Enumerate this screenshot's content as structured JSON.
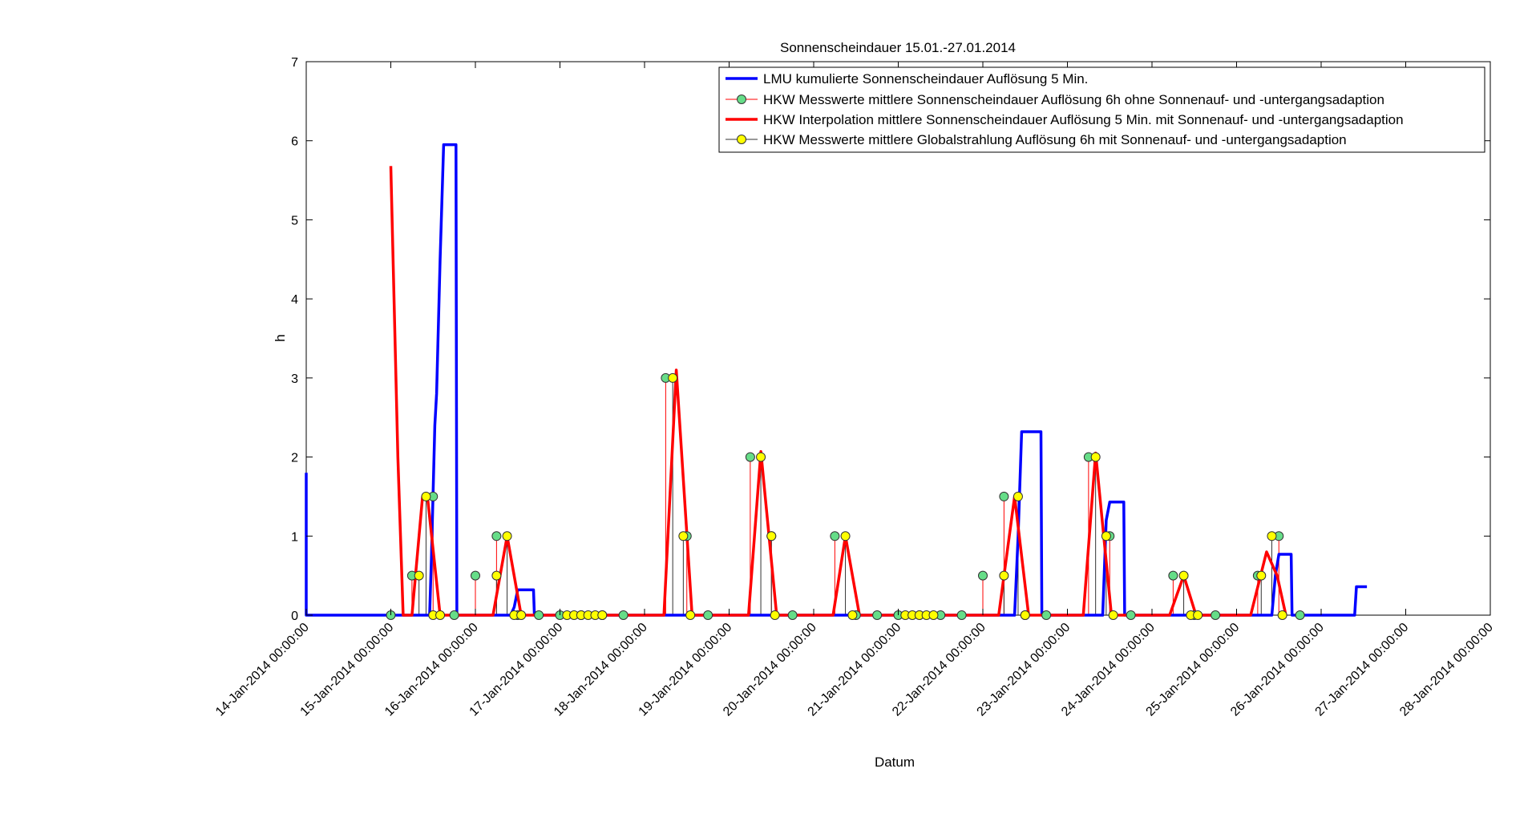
{
  "chart_data": {
    "type": "line",
    "title": "Sonnenscheindauer 15.01.-27.01.2014",
    "xlabel": "Datum",
    "ylabel": "h",
    "xlim": [
      "2014-01-14 00:00",
      "2014-01-28 00:00"
    ],
    "ylim": [
      0,
      7
    ],
    "xticks": [
      "14-Jan-2014 00:00:00",
      "15-Jan-2014 00:00:00",
      "16-Jan-2014 00:00:00",
      "17-Jan-2014 00:00:00",
      "18-Jan-2014 00:00:00",
      "19-Jan-2014 00:00:00",
      "20-Jan-2014 00:00:00",
      "21-Jan-2014 00:00:00",
      "22-Jan-2014 00:00:00",
      "23-Jan-2014 00:00:00",
      "24-Jan-2014 00:00:00",
      "25-Jan-2014 00:00:00",
      "26-Jan-2014 00:00:00",
      "27-Jan-2014 00:00:00",
      "28-Jan-2014 00:00:00"
    ],
    "yticks": [
      "0",
      "1",
      "2",
      "3",
      "4",
      "5",
      "6",
      "7"
    ],
    "grid": false,
    "legend_position": "top-right",
    "series": [
      {
        "name": "LMU kumulierte Sonnenscheindauer Auflösung 5 Min.",
        "color": "#0000ff",
        "style": "line",
        "points": [
          [
            "2014-01-14 00:00",
            1.8
          ],
          [
            "2014-01-14 00:00",
            0
          ],
          [
            "2014-01-15 11:00",
            0
          ],
          [
            "2014-01-15 11:30",
            0.7
          ],
          [
            "2014-01-15 12:30",
            2.4
          ],
          [
            "2014-01-15 13:00",
            2.8
          ],
          [
            "2014-01-15 14:00",
            4.5
          ],
          [
            "2014-01-15 15:00",
            5.95
          ],
          [
            "2014-01-15 18:30",
            5.95
          ],
          [
            "2014-01-15 18:45",
            0
          ],
          [
            "2014-01-16 10:00",
            0
          ],
          [
            "2014-01-16 11:00",
            0.1
          ],
          [
            "2014-01-16 12:00",
            0.32
          ],
          [
            "2014-01-16 16:30",
            0.32
          ],
          [
            "2014-01-16 16:45",
            0
          ],
          [
            "2014-01-22 09:00",
            0
          ],
          [
            "2014-01-22 10:00",
            1.0
          ],
          [
            "2014-01-22 11:00",
            2.32
          ],
          [
            "2014-01-22 16:30",
            2.32
          ],
          [
            "2014-01-22 16:45",
            0
          ],
          [
            "2014-01-23 10:00",
            0
          ],
          [
            "2014-01-23 11:00",
            1.2
          ],
          [
            "2014-01-23 12:00",
            1.43
          ],
          [
            "2014-01-23 16:00",
            1.43
          ],
          [
            "2014-01-23 16:15",
            0
          ],
          [
            "2014-01-25 10:00",
            0
          ],
          [
            "2014-01-25 11:00",
            0.5
          ],
          [
            "2014-01-25 12:00",
            0.77
          ],
          [
            "2014-01-25 15:30",
            0.77
          ],
          [
            "2014-01-25 15:45",
            0
          ],
          [
            "2014-01-26 09:30",
            0
          ],
          [
            "2014-01-26 10:00",
            0.36
          ],
          [
            "2014-01-26 13:00",
            0.36
          ]
        ]
      },
      {
        "name": "HKW Messwerte mittlere Sonnenscheindauer Auflösung 6h ohne Sonnenauf- und -untergangsadaption",
        "color": "#ff0000",
        "marker_color": "#66dd88",
        "style": "stem",
        "points": [
          [
            "2014-01-15 00:00",
            0
          ],
          [
            "2014-01-15 06:00",
            0.5
          ],
          [
            "2014-01-15 12:00",
            1.5
          ],
          [
            "2014-01-15 18:00",
            0
          ],
          [
            "2014-01-16 00:00",
            0.5
          ],
          [
            "2014-01-16 06:00",
            1.0
          ],
          [
            "2014-01-16 12:00",
            0
          ],
          [
            "2014-01-16 18:00",
            0
          ],
          [
            "2014-01-17 00:00",
            0
          ],
          [
            "2014-01-17 06:00",
            0
          ],
          [
            "2014-01-17 12:00",
            0
          ],
          [
            "2014-01-17 18:00",
            0
          ],
          [
            "2014-01-18 06:00",
            3.0
          ],
          [
            "2014-01-18 12:00",
            1.0
          ],
          [
            "2014-01-18 18:00",
            0
          ],
          [
            "2014-01-19 06:00",
            2.0
          ],
          [
            "2014-01-19 12:00",
            1.0
          ],
          [
            "2014-01-19 18:00",
            0
          ],
          [
            "2014-01-20 06:00",
            1.0
          ],
          [
            "2014-01-20 12:00",
            0
          ],
          [
            "2014-01-20 18:00",
            0
          ],
          [
            "2014-01-21 00:00",
            0
          ],
          [
            "2014-01-21 06:00",
            0
          ],
          [
            "2014-01-21 12:00",
            0
          ],
          [
            "2014-01-21 18:00",
            0
          ],
          [
            "2014-01-22 00:00",
            0.5
          ],
          [
            "2014-01-22 06:00",
            1.5
          ],
          [
            "2014-01-22 12:00",
            0
          ],
          [
            "2014-01-22 18:00",
            0
          ],
          [
            "2014-01-23 06:00",
            2.0
          ],
          [
            "2014-01-23 12:00",
            1.0
          ],
          [
            "2014-01-23 18:00",
            0
          ],
          [
            "2014-01-24 06:00",
            0.5
          ],
          [
            "2014-01-24 12:00",
            0
          ],
          [
            "2014-01-24 18:00",
            0
          ],
          [
            "2014-01-25 06:00",
            0.5
          ],
          [
            "2014-01-25 12:00",
            1.0
          ],
          [
            "2014-01-25 18:00",
            0
          ]
        ]
      },
      {
        "name": "HKW Interpolation mittlere Sonnenscheindauer Auflösung 5 Min. mit Sonnenauf- und -untergangsadaption",
        "color": "#ff0000",
        "style": "line",
        "points": [
          [
            "2014-01-15 00:00",
            5.68
          ],
          [
            "2014-01-15 02:00",
            2.0
          ],
          [
            "2014-01-15 03:30",
            0
          ],
          [
            "2014-01-15 06:00",
            0
          ],
          [
            "2014-01-15 09:00",
            1.5
          ],
          [
            "2014-01-15 10:30",
            1.45
          ],
          [
            "2014-01-15 14:00",
            0
          ],
          [
            "2014-01-16 05:00",
            0
          ],
          [
            "2014-01-16 09:00",
            1.0
          ],
          [
            "2014-01-16 13:00",
            0
          ],
          [
            "2014-01-18 05:30",
            0
          ],
          [
            "2014-01-18 09:00",
            3.1
          ],
          [
            "2014-01-18 13:30",
            0
          ],
          [
            "2014-01-19 05:30",
            0
          ],
          [
            "2014-01-19 09:00",
            2.07
          ],
          [
            "2014-01-19 13:30",
            0
          ],
          [
            "2014-01-20 05:30",
            0
          ],
          [
            "2014-01-20 09:00",
            1.0
          ],
          [
            "2014-01-20 13:00",
            0
          ],
          [
            "2014-01-22 04:30",
            0
          ],
          [
            "2014-01-22 09:00",
            1.5
          ],
          [
            "2014-01-22 13:00",
            0
          ],
          [
            "2014-01-23 04:30",
            0
          ],
          [
            "2014-01-23 08:00",
            2.05
          ],
          [
            "2014-01-23 12:30",
            0
          ],
          [
            "2014-01-24 05:00",
            0
          ],
          [
            "2014-01-24 09:00",
            0.5
          ],
          [
            "2014-01-24 12:30",
            0
          ],
          [
            "2014-01-25 04:00",
            0
          ],
          [
            "2014-01-25 08:30",
            0.8
          ],
          [
            "2014-01-25 11:30",
            0.5
          ],
          [
            "2014-01-25 14:00",
            0
          ]
        ]
      },
      {
        "name": "HKW Messwerte mittlere Globalstrahlung Auflösung 6h mit Sonnenauf- und -untergangsadaption",
        "color": "#333333",
        "marker_color": "#ffff00",
        "style": "stem",
        "points": [
          [
            "2014-01-15 08:00",
            0.5
          ],
          [
            "2014-01-15 10:00",
            1.5
          ],
          [
            "2014-01-15 12:00",
            0
          ],
          [
            "2014-01-15 14:00",
            0
          ],
          [
            "2014-01-16 06:00",
            0.5
          ],
          [
            "2014-01-16 09:00",
            1.0
          ],
          [
            "2014-01-16 11:00",
            0
          ],
          [
            "2014-01-16 13:00",
            0
          ],
          [
            "2014-01-17 02:00",
            0
          ],
          [
            "2014-01-17 04:00",
            0
          ],
          [
            "2014-01-17 06:00",
            0
          ],
          [
            "2014-01-17 08:00",
            0
          ],
          [
            "2014-01-17 10:00",
            0
          ],
          [
            "2014-01-17 12:00",
            0
          ],
          [
            "2014-01-18 08:00",
            3.0
          ],
          [
            "2014-01-18 11:00",
            1.0
          ],
          [
            "2014-01-18 13:00",
            0
          ],
          [
            "2014-01-19 09:00",
            2.0
          ],
          [
            "2014-01-19 12:00",
            1.0
          ],
          [
            "2014-01-19 13:00",
            0
          ],
          [
            "2014-01-20 09:00",
            1.0
          ],
          [
            "2014-01-20 11:00",
            0
          ],
          [
            "2014-01-21 02:00",
            0
          ],
          [
            "2014-01-21 04:00",
            0
          ],
          [
            "2014-01-21 06:00",
            0
          ],
          [
            "2014-01-21 08:00",
            0
          ],
          [
            "2014-01-21 10:00",
            0
          ],
          [
            "2014-01-22 06:00",
            0.5
          ],
          [
            "2014-01-22 10:00",
            1.5
          ],
          [
            "2014-01-22 12:00",
            0
          ],
          [
            "2014-01-23 08:00",
            2.0
          ],
          [
            "2014-01-23 11:00",
            1.0
          ],
          [
            "2014-01-23 13:00",
            0
          ],
          [
            "2014-01-24 09:00",
            0.5
          ],
          [
            "2014-01-24 11:00",
            0
          ],
          [
            "2014-01-24 13:00",
            0
          ],
          [
            "2014-01-25 07:00",
            0.5
          ],
          [
            "2014-01-25 10:00",
            1.0
          ],
          [
            "2014-01-25 13:00",
            0
          ]
        ]
      }
    ]
  }
}
